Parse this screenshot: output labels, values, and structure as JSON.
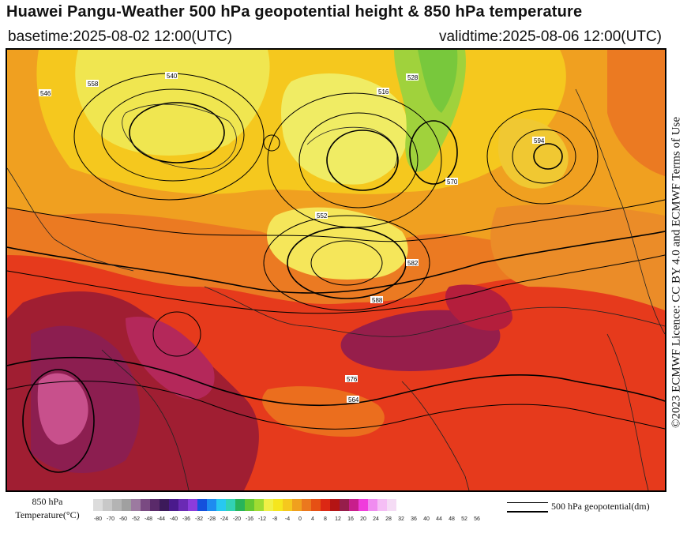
{
  "header": {
    "title": "Huawei Pangu-Weather 500 hPa geopotential height & 850 hPa temperature",
    "basetime": "basetime:2025-08-02 12:00(UTC)",
    "validtime": "validtime:2025-08-06 12:00(UTC)"
  },
  "credit": "©2023 ECMWF Licence: CC BY 4.0 and ECMWF Terms of Use",
  "legend": {
    "temp_label_line1": "850 hPa",
    "temp_label_line2": "Temperature(°C)",
    "geo_label": "500 hPa geopotential(dm)",
    "ticks": [
      "-80",
      "-70",
      "-60",
      "-52",
      "-48",
      "-44",
      "-40",
      "-36",
      "-32",
      "-28",
      "-24",
      "-20",
      "-16",
      "-12",
      "-8",
      "-4",
      "0",
      "4",
      "8",
      "12",
      "16",
      "20",
      "24",
      "28",
      "32",
      "36",
      "40",
      "44",
      "48",
      "52",
      "56"
    ],
    "colors": [
      "#dcdcdc",
      "#c8c8c8",
      "#b4b4b4",
      "#a0a0a0",
      "#9c7aa0",
      "#7a4a82",
      "#5a2a6a",
      "#3c1a5a",
      "#4a1a8c",
      "#6a2ab4",
      "#8c3cdc",
      "#1450dc",
      "#1e8cf0",
      "#28c8f0",
      "#32d2b4",
      "#28b45a",
      "#64c832",
      "#a0dc32",
      "#f0f046",
      "#f5e61e",
      "#f5c81e",
      "#f0a01e",
      "#eb781e",
      "#e65014",
      "#dc2814",
      "#b41414",
      "#961e4b",
      "#c81e8c",
      "#f03cdc",
      "#f08cf0",
      "#f5bef5",
      "#f5dcf5"
    ]
  },
  "map": {
    "contour_labels": [
      "588",
      "576",
      "564",
      "552",
      "540",
      "528",
      "516",
      "570",
      "582",
      "594",
      "558",
      "546"
    ]
  }
}
